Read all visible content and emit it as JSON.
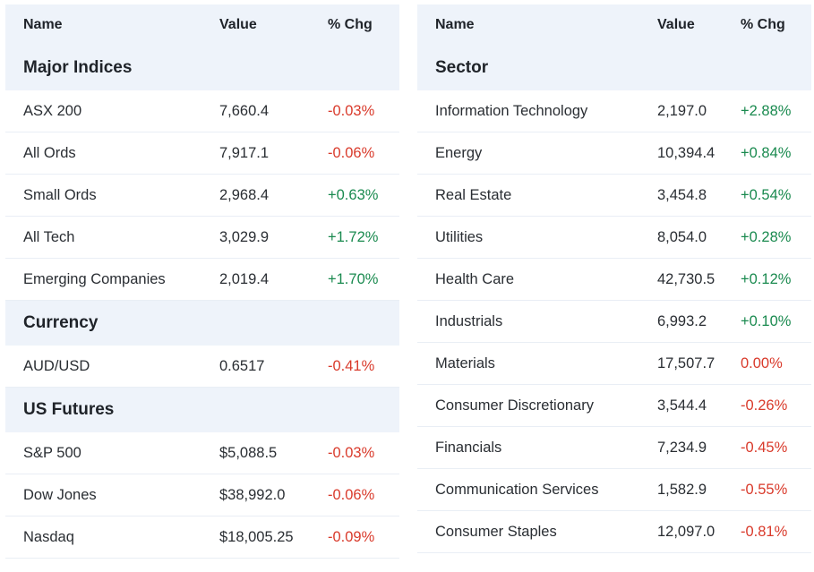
{
  "colors": {
    "positive": "#1a8a4f",
    "negative": "#d93a2b",
    "header_bg": "#eef3fa"
  },
  "left": {
    "headers": {
      "name": "Name",
      "value": "Value",
      "change": "% Chg"
    },
    "sections": [
      {
        "title": "Major Indices",
        "rows": [
          {
            "name": "ASX 200",
            "value": "7,660.4",
            "change": "-0.03%",
            "dir": "neg"
          },
          {
            "name": "All Ords",
            "value": "7,917.1",
            "change": "-0.06%",
            "dir": "neg"
          },
          {
            "name": "Small Ords",
            "value": "2,968.4",
            "change": "+0.63%",
            "dir": "pos"
          },
          {
            "name": "All Tech",
            "value": "3,029.9",
            "change": "+1.72%",
            "dir": "pos"
          },
          {
            "name": "Emerging Companies",
            "value": "2,019.4",
            "change": "+1.70%",
            "dir": "pos"
          }
        ]
      },
      {
        "title": "Currency",
        "rows": [
          {
            "name": "AUD/USD",
            "value": "0.6517",
            "change": "-0.41%",
            "dir": "neg"
          }
        ]
      },
      {
        "title": "US Futures",
        "rows": [
          {
            "name": "S&P 500",
            "value": "$5,088.5",
            "change": "-0.03%",
            "dir": "neg"
          },
          {
            "name": "Dow Jones",
            "value": "$38,992.0",
            "change": "-0.06%",
            "dir": "neg"
          },
          {
            "name": "Nasdaq",
            "value": "$18,005.25",
            "change": "-0.09%",
            "dir": "neg"
          }
        ]
      }
    ]
  },
  "right": {
    "headers": {
      "name": "Name",
      "value": "Value",
      "change": "% Chg"
    },
    "sections": [
      {
        "title": "Sector",
        "rows": [
          {
            "name": "Information Technology",
            "value": "2,197.0",
            "change": "+2.88%",
            "dir": "pos"
          },
          {
            "name": "Energy",
            "value": "10,394.4",
            "change": "+0.84%",
            "dir": "pos"
          },
          {
            "name": "Real Estate",
            "value": "3,454.8",
            "change": "+0.54%",
            "dir": "pos"
          },
          {
            "name": "Utilities",
            "value": "8,054.0",
            "change": "+0.28%",
            "dir": "pos"
          },
          {
            "name": "Health Care",
            "value": "42,730.5",
            "change": "+0.12%",
            "dir": "pos"
          },
          {
            "name": "Industrials",
            "value": "6,993.2",
            "change": "+0.10%",
            "dir": "pos"
          },
          {
            "name": "Materials",
            "value": "17,507.7",
            "change": "0.00%",
            "dir": "neg"
          },
          {
            "name": "Consumer Discretionary",
            "value": "3,544.4",
            "change": "-0.26%",
            "dir": "neg"
          },
          {
            "name": "Financials",
            "value": "7,234.9",
            "change": "-0.45%",
            "dir": "neg"
          },
          {
            "name": "Communication Services",
            "value": "1,582.9",
            "change": "-0.55%",
            "dir": "neg"
          },
          {
            "name": "Consumer Staples",
            "value": "12,097.0",
            "change": "-0.81%",
            "dir": "neg"
          }
        ]
      }
    ]
  }
}
